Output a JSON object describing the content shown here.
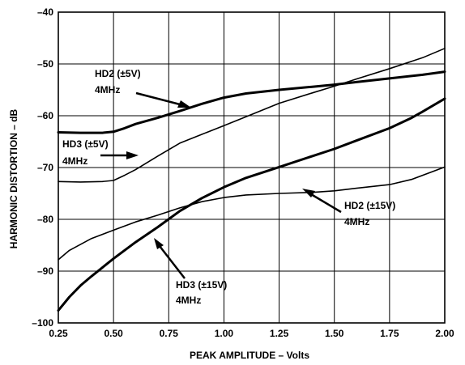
{
  "chart_data": {
    "type": "line",
    "xlabel": "PEAK AMPLITUDE – Volts",
    "ylabel": "HARMONIC DISTORTION – dB",
    "xlim": [
      0.25,
      2.0
    ],
    "ylim": [
      -100,
      -40
    ],
    "x_ticks": [
      "0.25",
      "0.50",
      "0.75",
      "1.00",
      "1.25",
      "1.50",
      "1.75",
      "2.00"
    ],
    "y_ticks": [
      "–40",
      "–50",
      "–60",
      "–70",
      "–80",
      "–90",
      "–100"
    ],
    "grid": true,
    "series": [
      {
        "name": "HD2 (±5V) 4MHz",
        "line_weight": "thick",
        "x": [
          0.25,
          0.35,
          0.45,
          0.5,
          0.55,
          0.6,
          0.7,
          0.8,
          0.9,
          1.0,
          1.1,
          1.25,
          1.4,
          1.5,
          1.6,
          1.75,
          1.9,
          2.0
        ],
        "y": [
          -63.2,
          -63.3,
          -63.3,
          -63.1,
          -62.4,
          -61.6,
          -60.4,
          -59.1,
          -57.7,
          -56.5,
          -55.7,
          -55.0,
          -54.4,
          -54.0,
          -53.5,
          -52.8,
          -52.1,
          -51.5
        ]
      },
      {
        "name": "HD3 (±5V) 4MHz",
        "line_weight": "thin",
        "x": [
          0.25,
          0.35,
          0.45,
          0.5,
          0.55,
          0.6,
          0.7,
          0.8,
          0.9,
          1.0,
          1.1,
          1.25,
          1.4,
          1.5,
          1.6,
          1.75,
          1.9,
          2.0
        ],
        "y": [
          -72.7,
          -72.8,
          -72.7,
          -72.5,
          -71.5,
          -70.4,
          -67.8,
          -65.3,
          -63.6,
          -61.9,
          -60.2,
          -57.6,
          -55.6,
          -54.3,
          -52.9,
          -50.9,
          -48.8,
          -47.0
        ]
      },
      {
        "name": "HD2 (±15V) 4MHz",
        "line_weight": "thin",
        "x": [
          0.25,
          0.3,
          0.4,
          0.5,
          0.6,
          0.7,
          0.8,
          0.9,
          1.0,
          1.1,
          1.25,
          1.4,
          1.5,
          1.6,
          1.75,
          1.85,
          2.0
        ],
        "y": [
          -87.8,
          -86.0,
          -83.7,
          -82.1,
          -80.5,
          -79.2,
          -77.8,
          -76.6,
          -75.8,
          -75.3,
          -75.0,
          -74.8,
          -74.5,
          -74.0,
          -73.3,
          -72.3,
          -69.9
        ]
      },
      {
        "name": "HD3 (±15V) 4MHz",
        "line_weight": "thick",
        "x": [
          0.25,
          0.3,
          0.35,
          0.4,
          0.5,
          0.6,
          0.7,
          0.8,
          0.9,
          1.0,
          1.1,
          1.25,
          1.4,
          1.5,
          1.6,
          1.75,
          1.85,
          1.9,
          2.0
        ],
        "y": [
          -97.6,
          -95.0,
          -92.8,
          -91.0,
          -87.6,
          -84.4,
          -81.5,
          -78.4,
          -75.9,
          -73.8,
          -72.0,
          -69.9,
          -67.8,
          -66.4,
          -64.8,
          -62.4,
          -60.4,
          -59.2,
          -56.7
        ]
      }
    ],
    "annotations": [
      {
        "line1": "HD2 (±5V)",
        "line2": "4MHz"
      },
      {
        "line1": "HD3 (±5V)",
        "line2": "4MHz"
      },
      {
        "line1": "HD2 (±15V)",
        "line2": "4MHz"
      },
      {
        "line1": "HD3 (±15V)",
        "line2": "4MHz"
      }
    ]
  }
}
